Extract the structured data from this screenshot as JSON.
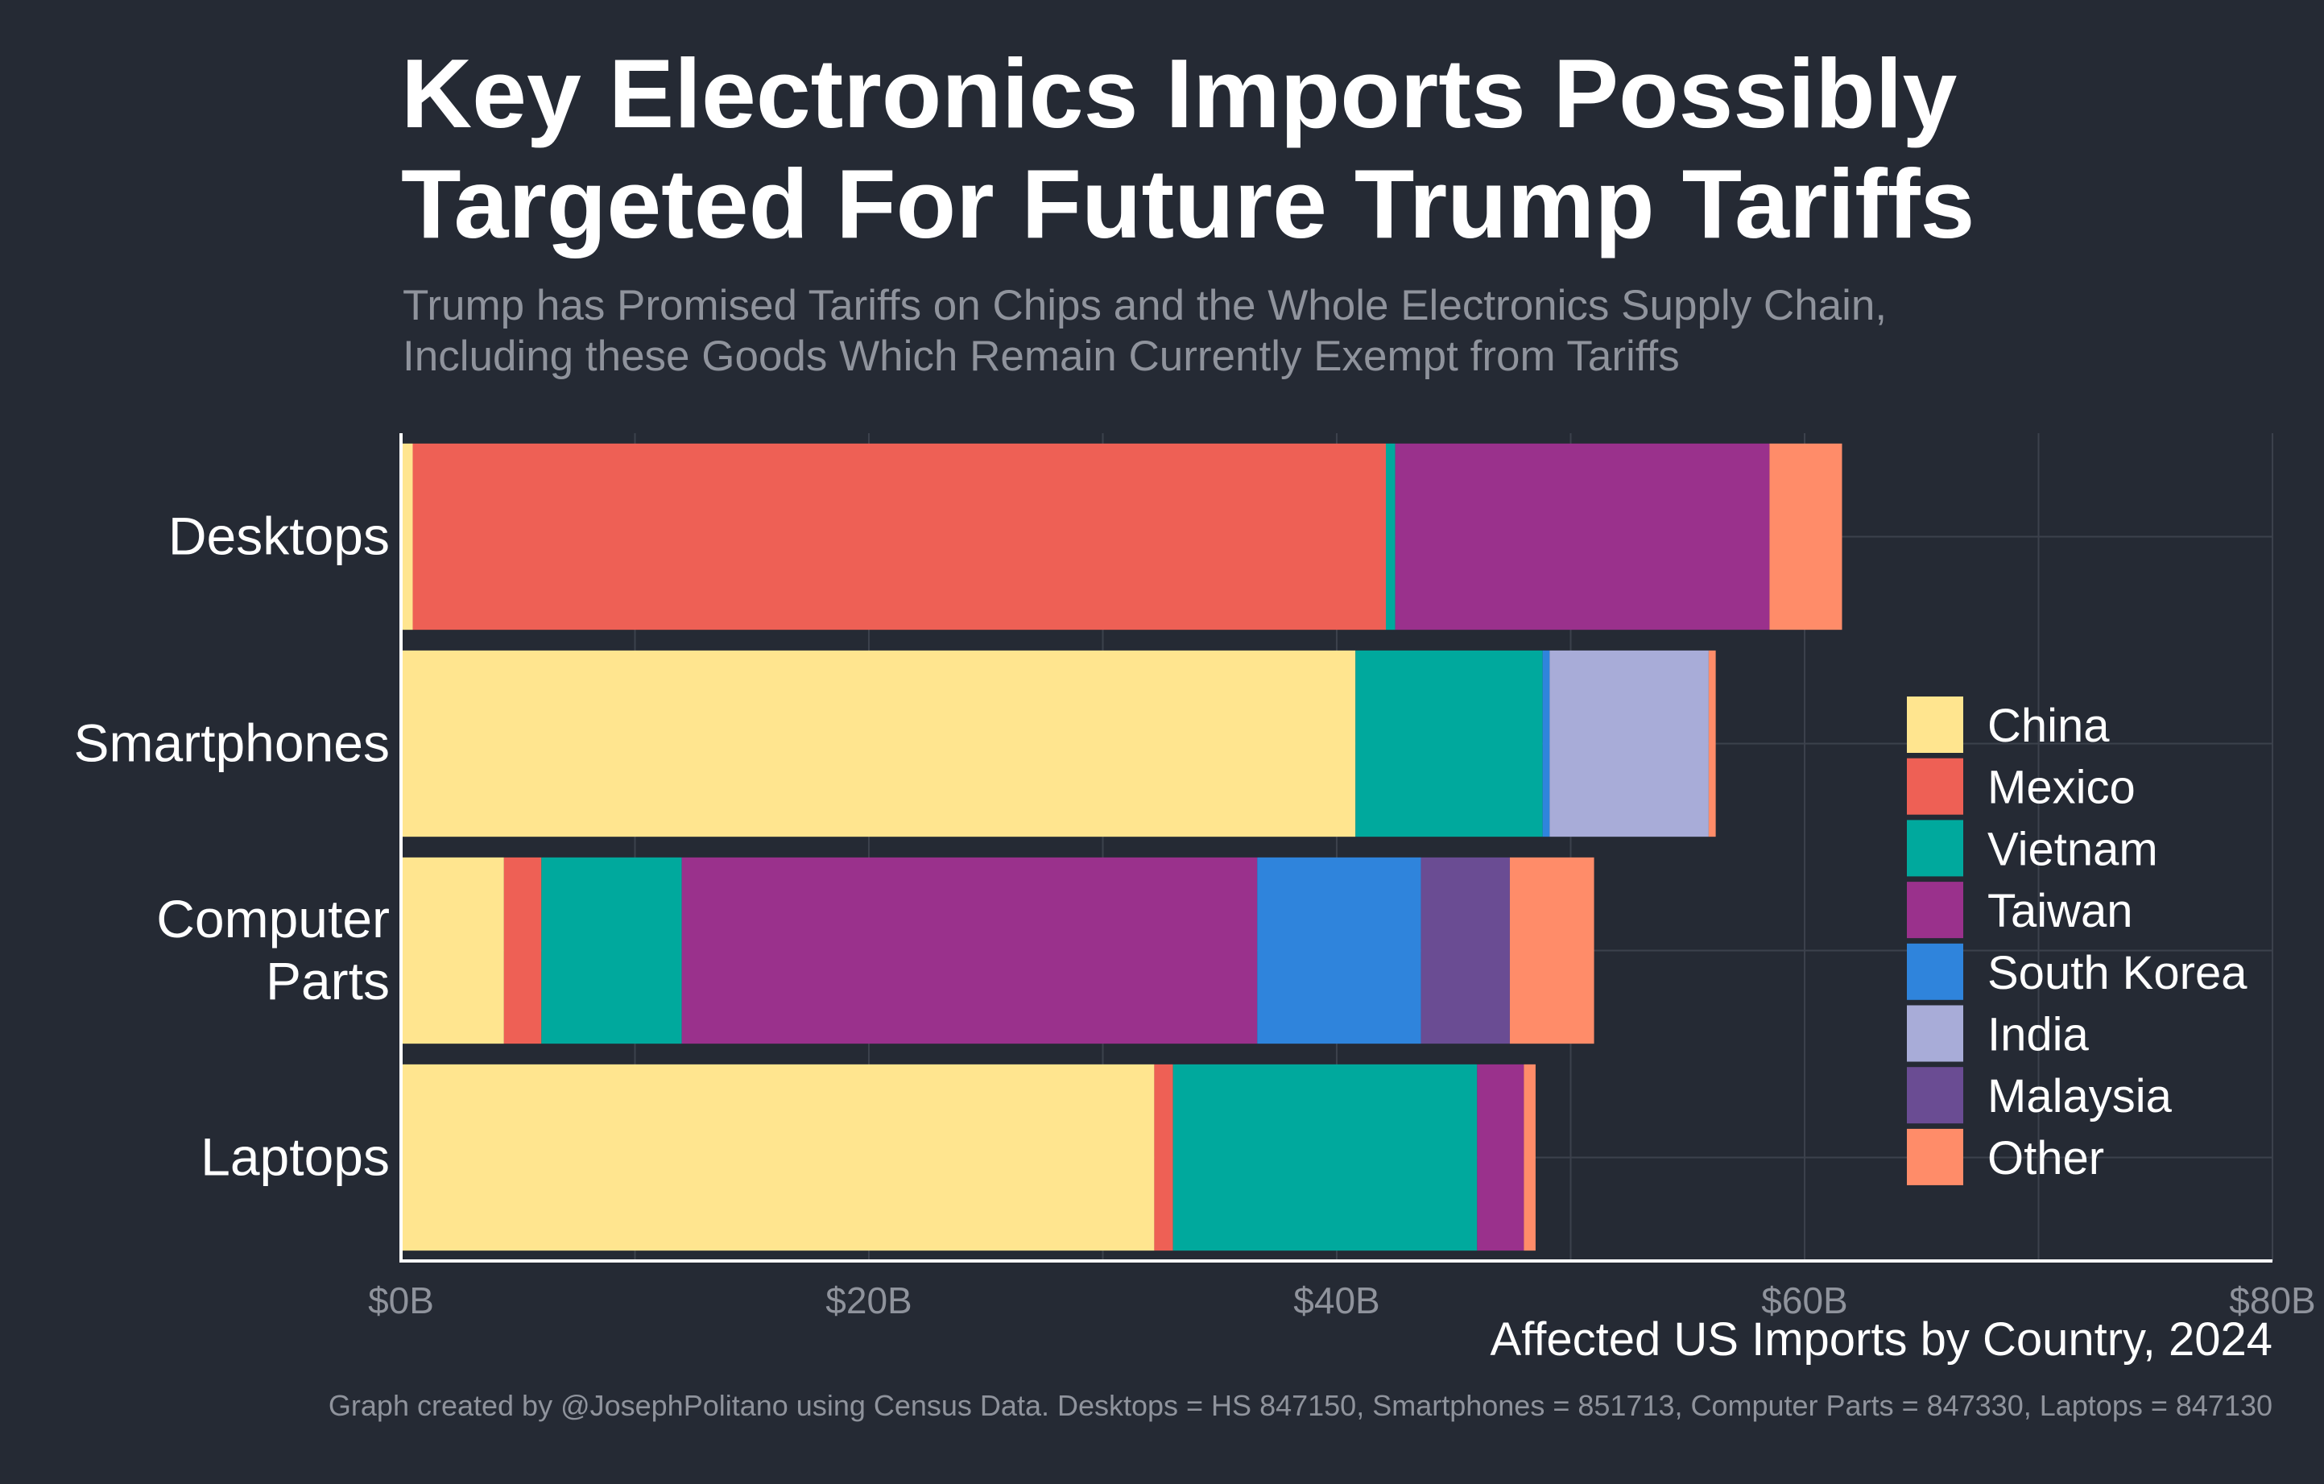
{
  "title_lines": [
    "Key Electronics Imports Possibly",
    "Targeted For Future Trump Tariffs"
  ],
  "subtitle_lines": [
    "Trump has Promised Tariffs on Chips and the Whole Electronics Supply Chain,",
    "Including these Goods Which Remain Currently Exempt from Tariffs"
  ],
  "caption": "Graph created by @JosephPolitano using Census Data. Desktops = HS 847150, Smartphones = 851713, Computer Parts = 847330, Laptops = 847130",
  "colors": {
    "background": "#252a34",
    "grid": "#3c414c",
    "axis": "#ffffff",
    "tick_text": "#8f939c",
    "China": "#ffe58f",
    "Mexico": "#ee6055",
    "Vietnam": "#00a99d",
    "Taiwan": "#9a318c",
    "South Korea": "#2f84dc",
    "India": "#a8acd8",
    "Malaysia": "#6a4c93",
    "Other": "#ff8c69"
  },
  "chart_data": {
    "type": "bar",
    "orientation": "horizontal",
    "stacked": true,
    "categories": [
      [
        "Desktops"
      ],
      [
        "Smartphones"
      ],
      [
        "Computer",
        "Parts"
      ],
      [
        "Laptops"
      ]
    ],
    "series": [
      {
        "name": "China",
        "values": [
          0.5,
          40.8,
          4.4,
          32.2
        ]
      },
      {
        "name": "Mexico",
        "values": [
          41.6,
          0.0,
          1.6,
          0.8
        ]
      },
      {
        "name": "Vietnam",
        "values": [
          0.4,
          8.0,
          6.0,
          13.0
        ]
      },
      {
        "name": "Taiwan",
        "values": [
          16.0,
          0.0,
          24.6,
          2.0
        ]
      },
      {
        "name": "South Korea",
        "values": [
          0.0,
          0.3,
          7.0,
          0.0
        ]
      },
      {
        "name": "India",
        "values": [
          0.0,
          6.8,
          0.0,
          0.0
        ]
      },
      {
        "name": "Malaysia",
        "values": [
          0.0,
          0.0,
          3.8,
          0.0
        ]
      },
      {
        "name": "Other",
        "values": [
          3.1,
          0.3,
          3.6,
          0.5
        ]
      }
    ],
    "xlabel": "Affected US Imports by Country, 2024",
    "ylabel": "",
    "xlim": [
      0,
      80
    ],
    "xticks": [
      0,
      20,
      40,
      60,
      80
    ],
    "xtick_labels": [
      "$0B",
      "$20B",
      "$40B",
      "$60B",
      "$80B"
    ],
    "grid": true,
    "legend_position": "right"
  }
}
